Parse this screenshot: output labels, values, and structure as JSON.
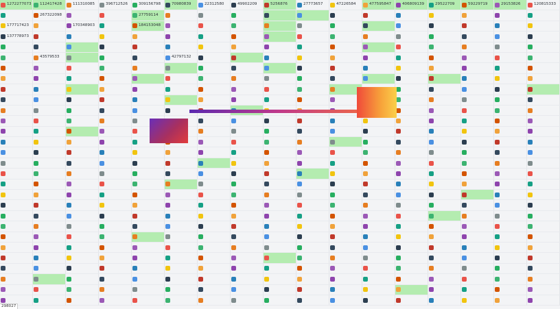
{
  "row_0": [
    "1272277073",
    "112417428",
    "111310085",
    "396712526",
    "309156798",
    "70980839",
    "22312580",
    "49902209",
    "5256876",
    "27773657",
    "47226584",
    "477595847",
    "406809139",
    "29522709",
    "59229719",
    "29153826",
    "120815333"
  ],
  "row_1": [
    "",
    "267322098",
    "",
    "",
    "27759114",
    "",
    "",
    "",
    "",
    "",
    "",
    "",
    "",
    "",
    "",
    "",
    ""
  ],
  "row_2": [
    "177717423",
    "",
    "170348903",
    "",
    "184153048",
    "",
    "",
    "",
    "",
    "",
    "",
    "",
    "",
    "",
    "",
    "",
    ""
  ],
  "row_3": [
    "137778973",
    "",
    "",
    "",
    "",
    "",
    "",
    "",
    "",
    "",
    "",
    "",
    "",
    "",
    "",
    "",
    ""
  ],
  "row_4": [
    "",
    "",
    "",
    "",
    "",
    "",
    "",
    "",
    "",
    "",
    "",
    "",
    "",
    "",
    "",
    "",
    ""
  ],
  "row_5": [
    "",
    "43579533",
    "",
    "",
    "",
    "42797132",
    "",
    "",
    "",
    "",
    "",
    "",
    "",
    "",
    "",
    "",
    ""
  ],
  "row_6": [
    "",
    "",
    "",
    "",
    "",
    "",
    "",
    "",
    "",
    "",
    "",
    "",
    "",
    "",
    "",
    "",
    ""
  ],
  "row_7": [
    "",
    "",
    "",
    "",
    "",
    "",
    "",
    "",
    "",
    "",
    "",
    "",
    "",
    "",
    "",
    "",
    ""
  ],
  "row_8": [
    "",
    "",
    "",
    "",
    "",
    "",
    "",
    "",
    "",
    "",
    "",
    "",
    "",
    "",
    "",
    "",
    ""
  ],
  "row_9": [
    "",
    "",
    "",
    "",
    "",
    "",
    "",
    "",
    "",
    "",
    "",
    "",
    "",
    "",
    "",
    "",
    ""
  ],
  "row_10": [
    "",
    "",
    "",
    "",
    "",
    "",
    "",
    "",
    "",
    "",
    "",
    "",
    "",
    "",
    "",
    "",
    ""
  ],
  "row_11": [
    "",
    "",
    "",
    "",
    "",
    "",
    "",
    "",
    "",
    "",
    "",
    "",
    "",
    "",
    "",
    "",
    ""
  ],
  "row_12": [
    "",
    "",
    "",
    "",
    "",
    "",
    "",
    "",
    "",
    "",
    "",
    "",
    "",
    "",
    "",
    "",
    ""
  ],
  "row_13": [
    "",
    "",
    "",
    "",
    "",
    "",
    "",
    "",
    "",
    "",
    "",
    "",
    "",
    "",
    "",
    "",
    ""
  ],
  "row_14": [
    "",
    "",
    "",
    "",
    "",
    "",
    "",
    "",
    "",
    "",
    "",
    "",
    "",
    "",
    "",
    "",
    ""
  ],
  "row_15": [
    "",
    "",
    "",
    "",
    "",
    "",
    "",
    "",
    "",
    "",
    "",
    "",
    "",
    "",
    "",
    "",
    ""
  ],
  "row_16": [
    "",
    "",
    "",
    "",
    "",
    "",
    "",
    "",
    "",
    "",
    "",
    "",
    "",
    "",
    "",
    "",
    ""
  ],
  "row_17": [
    "",
    "",
    "",
    "",
    "",
    "",
    "",
    "",
    "",
    "",
    "",
    "",
    "",
    "",
    "",
    "",
    ""
  ],
  "row_18": [
    "",
    "",
    "",
    "",
    "",
    "",
    "",
    "",
    "",
    "",
    "",
    "",
    "",
    "",
    "",
    "",
    ""
  ],
  "row_19": [
    "",
    "",
    "",
    "",
    "",
    "",
    "",
    "",
    "",
    "",
    "",
    "",
    "",
    "",
    "",
    "",
    ""
  ],
  "row_20": [
    "",
    "",
    "",
    "",
    "",
    "",
    "",
    "",
    "",
    "",
    "",
    "",
    "",
    "",
    "",
    "",
    ""
  ],
  "row_21": [
    "",
    "",
    "",
    "",
    "",
    "",
    "",
    "",
    "",
    "",
    "",
    "",
    "",
    "",
    "",
    "",
    ""
  ],
  "row_22": [
    "",
    "",
    "",
    "",
    "",
    "",
    "",
    "",
    "",
    "",
    "",
    "",
    "",
    "",
    "",
    "",
    ""
  ],
  "row_23": [
    "",
    "",
    "",
    "",
    "",
    "",
    "",
    "",
    "",
    "",
    "",
    "",
    "",
    "",
    "",
    "",
    ""
  ],
  "row_24": [
    "",
    "",
    "",
    "",
    "",
    "",
    "",
    "",
    "",
    "",
    "",
    "",
    "",
    "",
    "",
    "",
    ""
  ],
  "row_25": [
    "",
    "",
    "",
    "",
    "",
    "",
    "",
    "",
    "",
    "",
    "",
    "",
    "",
    "",
    "",
    "",
    ""
  ],
  "row_26": [
    "",
    "",
    "",
    "",
    "",
    "",
    "",
    "",
    "",
    "",
    "",
    "",
    "",
    "",
    "",
    "",
    ""
  ],
  "row_27": [
    "",
    "",
    "",
    "",
    "",
    "",
    "",
    "",
    "",
    "",
    "",
    "",
    "",
    "",
    "",
    "",
    ""
  ],
  "row_28": [
    "",
    "",
    "",
    "",
    "",
    "",
    "",
    "",
    "",
    "",
    "",
    "",
    "",
    "",
    "",
    "",
    ""
  ],
  "corner_label": "298027"
}
